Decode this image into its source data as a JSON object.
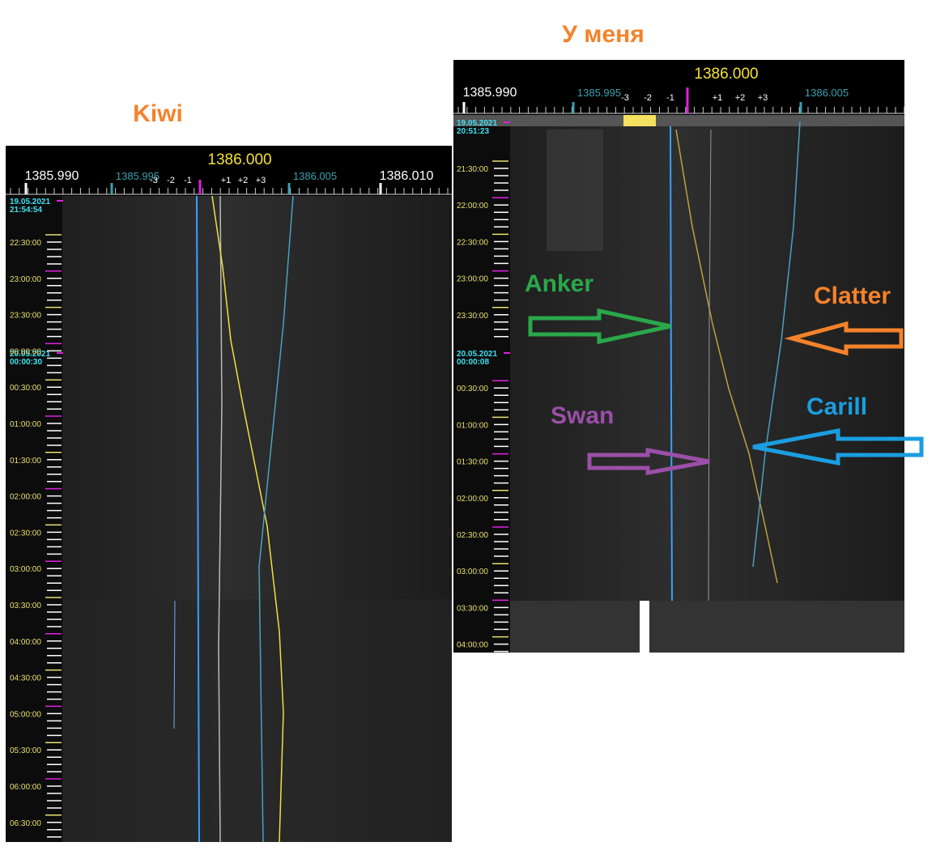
{
  "left": {
    "title": "Kiwi",
    "center_freq": "1386.000",
    "freq_labels": [
      "1385.990",
      "1385.995",
      "1386.005",
      "1386.010"
    ],
    "offset_labels": [
      "-3",
      "-2",
      "-1",
      "+1",
      "+2",
      "+3"
    ],
    "dates": [
      {
        "date": "19.05.2021",
        "time": "21:54:54"
      },
      {
        "date": "20.05.2021",
        "time": "00:00:30"
      }
    ],
    "times": [
      "22:30:00",
      "23:00:00",
      "23:30:00",
      "00:00:00",
      "00:30:00",
      "01:00:00",
      "01:30:00",
      "02:00:00",
      "02:30:00",
      "03:00:00",
      "03:30:00",
      "04:00:00",
      "04:30:00",
      "05:00:00",
      "05:30:00",
      "06:00:00",
      "06:30:00"
    ]
  },
  "right": {
    "title": "У меня",
    "center_freq": "1386.000",
    "freq_labels": [
      "1385.990",
      "1385.995",
      "1386.005"
    ],
    "offset_labels": [
      "-3",
      "-2",
      "-1",
      "+1",
      "+2",
      "+3"
    ],
    "dates": [
      {
        "date": "19.05.2021",
        "time": "20:51:23"
      },
      {
        "date": "20.05.2021",
        "time": "00:00:08"
      }
    ],
    "times": [
      "21:30:00",
      "22:00:00",
      "22:30:00",
      "23:00:00",
      "23:30:00",
      "00:30:00",
      "01:00:00",
      "01:30:00",
      "02:00:00",
      "02:30:00",
      "03:00:00",
      "03:30:00",
      "04:00:00"
    ]
  },
  "annotations": [
    "Anker",
    "Clatter",
    "Swan",
    "Carill"
  ]
}
